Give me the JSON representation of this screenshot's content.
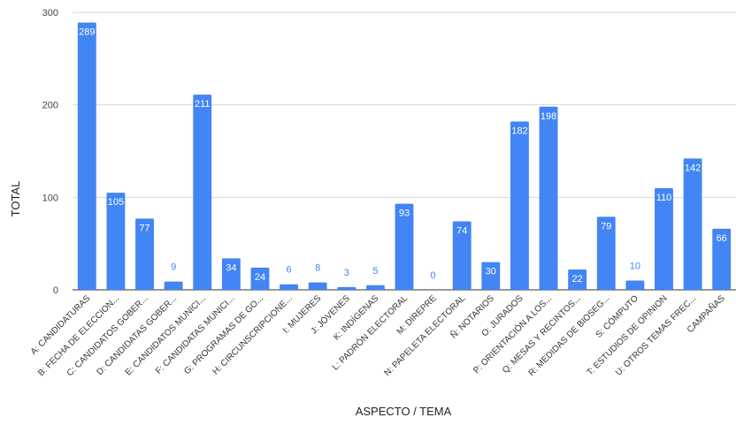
{
  "chart_data": {
    "type": "bar",
    "xlabel": "ASPECTO / TEMA",
    "ylabel": "TOTAL",
    "ylim": [
      0,
      300
    ],
    "yticks": [
      0,
      100,
      200,
      300
    ],
    "grid": true,
    "bar_color": "#4285f4",
    "categories": [
      "A: CANDIDATURAS",
      "B: FECHA DE ELECCION...",
      "C: CANDIDATOS GOBER...",
      "D: CANDIDATAS GOBER...",
      "E: CANDIDATOS MUNICI...",
      "F: CANDIDATAS MUNICI...",
      "G: PROGRAMAS DE GO...",
      "H: CIRCUNSCRIPCIONE...",
      "I: MUJERES",
      "J: JÓVENES",
      "K: INDÍGENAS",
      "L: PADRÓN ELECTORAL",
      "M: DIREPRE",
      "N: PAPELETA ELECTORAL",
      "Ñ: NOTARIOS",
      "O: JURADOS",
      "P: ORIENTACIÓN A LOS...",
      "Q: MESAS Y RECINTOS...",
      "R: MEDIDAS DE BIOSEG...",
      "S: CÓMPUTO",
      "T: ESTUDIOS DE OPINION",
      "U: OTROS TEMAS FREC...",
      "CAMPAÑAS"
    ],
    "values": [
      289,
      105,
      77,
      9,
      211,
      34,
      24,
      6,
      8,
      3,
      5,
      93,
      0,
      74,
      30,
      182,
      198,
      22,
      79,
      10,
      110,
      142,
      66
    ]
  }
}
